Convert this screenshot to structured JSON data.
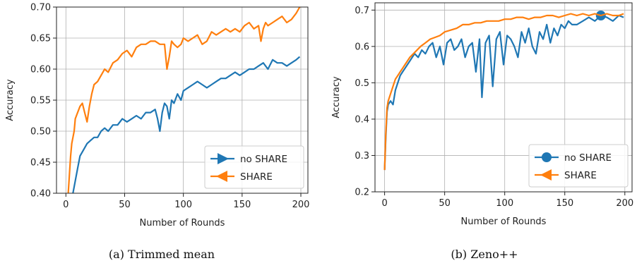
{
  "captions": [
    "(a) Trimmed mean",
    "(b) Zeno++"
  ],
  "colors": {
    "no_share": "#1f77b4",
    "share": "#ff7f0e"
  },
  "chart_data": [
    {
      "type": "line",
      "title": "",
      "xlabel": "Number of Rounds",
      "ylabel": "Accuracy",
      "xlim": [
        -8,
        206
      ],
      "ylim": [
        0.4,
        0.7
      ],
      "xticks": [
        0,
        50,
        100,
        150,
        200
      ],
      "yticks": [
        0.4,
        0.45,
        0.5,
        0.55,
        0.6,
        0.65,
        0.7
      ],
      "ytick_labels": [
        "0.40",
        "0.45",
        "0.50",
        "0.55",
        "0.60",
        "0.65",
        "0.70"
      ],
      "grid": true,
      "legend": "bottom-right",
      "series": [
        {
          "name": "no SHARE",
          "marker": "right-triangle",
          "x": [
            4,
            6,
            8,
            10,
            12,
            15,
            18,
            21,
            24,
            27,
            30,
            33,
            36,
            40,
            44,
            48,
            52,
            56,
            60,
            64,
            68,
            72,
            76,
            78,
            80,
            82,
            84,
            86,
            88,
            90,
            92,
            95,
            98,
            100,
            104,
            108,
            112,
            116,
            120,
            124,
            128,
            132,
            136,
            140,
            144,
            148,
            152,
            156,
            160,
            164,
            168,
            172,
            176,
            180,
            184,
            188,
            192,
            196,
            199
          ],
          "y": [
            0.39,
            0.4,
            0.42,
            0.44,
            0.46,
            0.47,
            0.48,
            0.485,
            0.49,
            0.49,
            0.5,
            0.505,
            0.5,
            0.51,
            0.51,
            0.52,
            0.515,
            0.52,
            0.525,
            0.52,
            0.53,
            0.53,
            0.535,
            0.52,
            0.5,
            0.53,
            0.545,
            0.54,
            0.52,
            0.55,
            0.545,
            0.56,
            0.55,
            0.565,
            0.57,
            0.575,
            0.58,
            0.575,
            0.57,
            0.575,
            0.58,
            0.585,
            0.585,
            0.59,
            0.595,
            0.59,
            0.595,
            0.6,
            0.6,
            0.605,
            0.61,
            0.6,
            0.615,
            0.61,
            0.61,
            0.605,
            0.61,
            0.615,
            0.62
          ]
        },
        {
          "name": "SHARE",
          "marker": "left-triangle",
          "x": [
            2,
            3,
            4,
            5,
            6,
            7,
            8,
            10,
            12,
            14,
            16,
            18,
            20,
            22,
            24,
            27,
            30,
            33,
            36,
            40,
            44,
            48,
            52,
            56,
            60,
            64,
            68,
            72,
            76,
            80,
            84,
            86,
            88,
            90,
            92,
            95,
            98,
            100,
            104,
            108,
            112,
            116,
            120,
            124,
            128,
            132,
            136,
            140,
            144,
            148,
            152,
            156,
            160,
            164,
            166,
            168,
            170,
            172,
            176,
            180,
            184,
            188,
            192,
            196,
            199
          ],
          "y": [
            0.4,
            0.43,
            0.46,
            0.48,
            0.49,
            0.5,
            0.52,
            0.53,
            0.54,
            0.545,
            0.53,
            0.515,
            0.54,
            0.56,
            0.575,
            0.58,
            0.59,
            0.6,
            0.595,
            0.61,
            0.615,
            0.625,
            0.63,
            0.62,
            0.635,
            0.64,
            0.64,
            0.645,
            0.645,
            0.64,
            0.64,
            0.6,
            0.62,
            0.645,
            0.64,
            0.635,
            0.64,
            0.65,
            0.645,
            0.65,
            0.655,
            0.64,
            0.645,
            0.66,
            0.655,
            0.66,
            0.665,
            0.66,
            0.665,
            0.66,
            0.67,
            0.675,
            0.665,
            0.67,
            0.645,
            0.665,
            0.675,
            0.67,
            0.675,
            0.68,
            0.685,
            0.675,
            0.68,
            0.69,
            0.7
          ]
        }
      ]
    },
    {
      "type": "line",
      "title": "",
      "xlabel": "Number of Rounds",
      "ylabel": "Accuracy",
      "xlim": [
        -8,
        206
      ],
      "ylim": [
        0.2,
        0.72
      ],
      "xticks": [
        0,
        50,
        100,
        150,
        200
      ],
      "yticks": [
        0.2,
        0.3,
        0.4,
        0.5,
        0.6,
        0.7
      ],
      "ytick_labels": [
        "0.2",
        "0.3",
        "0.4",
        "0.5",
        "0.6",
        "0.7"
      ],
      "grid": true,
      "legend": "bottom-right",
      "series": [
        {
          "name": "no SHARE",
          "marker": "circle",
          "marker_at": [
            180,
            0.685
          ],
          "x": [
            0,
            1,
            2,
            3,
            5,
            7,
            9,
            11,
            13,
            15,
            17,
            19,
            21,
            23,
            25,
            28,
            31,
            34,
            37,
            40,
            43,
            46,
            49,
            52,
            55,
            58,
            61,
            64,
            67,
            70,
            73,
            76,
            79,
            81,
            84,
            87,
            90,
            93,
            96,
            99,
            102,
            105,
            108,
            111,
            114,
            117,
            120,
            123,
            126,
            129,
            132,
            135,
            138,
            141,
            144,
            147,
            150,
            153,
            156,
            160,
            165,
            170,
            175,
            180,
            185,
            190,
            195,
            199
          ],
          "y": [
            0.26,
            0.35,
            0.42,
            0.44,
            0.45,
            0.44,
            0.48,
            0.5,
            0.52,
            0.53,
            0.54,
            0.55,
            0.56,
            0.57,
            0.58,
            0.57,
            0.59,
            0.58,
            0.6,
            0.61,
            0.57,
            0.6,
            0.55,
            0.61,
            0.62,
            0.59,
            0.6,
            0.62,
            0.57,
            0.6,
            0.61,
            0.53,
            0.62,
            0.46,
            0.61,
            0.63,
            0.49,
            0.62,
            0.64,
            0.55,
            0.63,
            0.62,
            0.6,
            0.57,
            0.64,
            0.61,
            0.65,
            0.6,
            0.58,
            0.64,
            0.62,
            0.66,
            0.61,
            0.65,
            0.63,
            0.66,
            0.65,
            0.67,
            0.66,
            0.66,
            0.67,
            0.68,
            0.67,
            0.685,
            0.68,
            0.67,
            0.685,
            0.68
          ]
        },
        {
          "name": "SHARE",
          "marker": "left-triangle",
          "x": [
            0,
            1,
            2,
            3,
            5,
            7,
            9,
            11,
            13,
            15,
            17,
            19,
            21,
            24,
            27,
            30,
            34,
            38,
            42,
            46,
            50,
            55,
            60,
            65,
            70,
            75,
            80,
            85,
            90,
            95,
            100,
            105,
            110,
            115,
            120,
            125,
            130,
            135,
            140,
            145,
            150,
            155,
            160,
            165,
            170,
            175,
            180,
            185,
            190,
            195,
            199
          ],
          "y": [
            0.26,
            0.36,
            0.43,
            0.45,
            0.47,
            0.49,
            0.51,
            0.52,
            0.53,
            0.54,
            0.55,
            0.56,
            0.57,
            0.58,
            0.59,
            0.6,
            0.61,
            0.62,
            0.625,
            0.63,
            0.64,
            0.645,
            0.65,
            0.66,
            0.66,
            0.665,
            0.665,
            0.67,
            0.67,
            0.67,
            0.675,
            0.675,
            0.68,
            0.68,
            0.675,
            0.68,
            0.68,
            0.685,
            0.685,
            0.68,
            0.685,
            0.69,
            0.685,
            0.69,
            0.685,
            0.69,
            0.685,
            0.69,
            0.685,
            0.685,
            0.69
          ]
        }
      ]
    }
  ]
}
